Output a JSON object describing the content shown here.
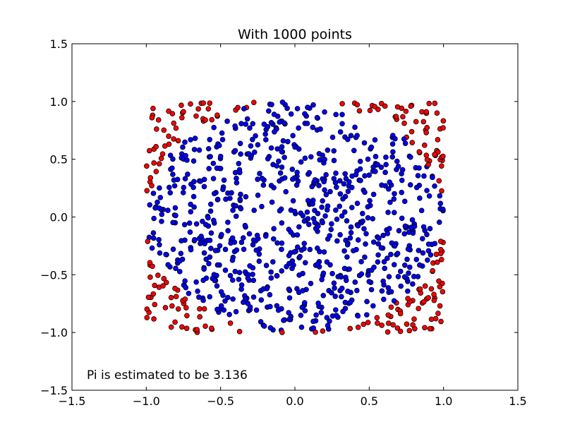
{
  "chart_data": {
    "type": "scatter",
    "title": "With 1000 points",
    "xlabel": "",
    "ylabel": "",
    "xlim": [
      -1.5,
      1.5
    ],
    "ylim": [
      -1.5,
      1.5
    ],
    "xticks": [
      "−1.5",
      "−1.0",
      "−0.5",
      "0.0",
      "0.5",
      "1.0",
      "1.5"
    ],
    "yticks": [
      "−1.5",
      "−1.0",
      "−0.5",
      "0.0",
      "0.5",
      "1.0",
      "1.5"
    ],
    "grid": false,
    "annotation": "Pi is estimated to be 3.136",
    "point_count": 1000,
    "points_range": {
      "x": [
        -1.0,
        1.0
      ],
      "y": [
        -1.0,
        1.0
      ]
    },
    "series": [
      {
        "color": "#0000ff",
        "rule": "x² + y² ≤ 1"
      },
      {
        "color": "#ff0000",
        "rule": "x² + y² > 1"
      }
    ]
  }
}
